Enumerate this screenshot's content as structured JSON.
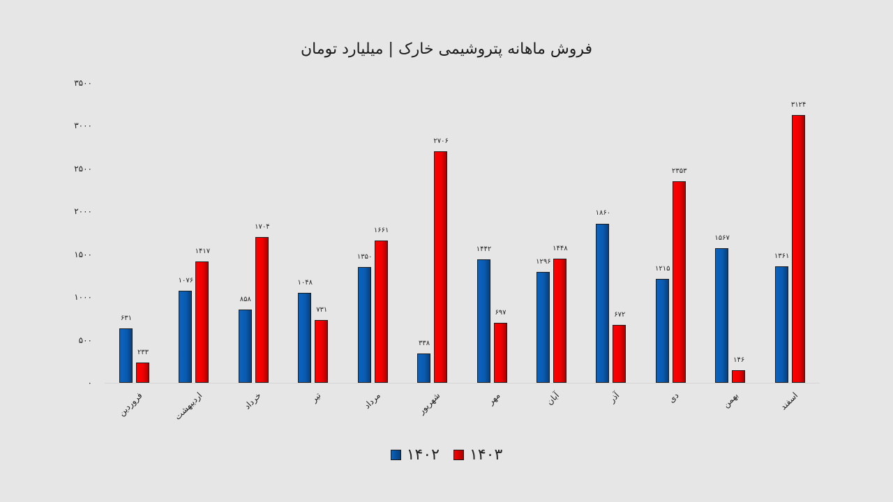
{
  "title": "فروش ماهانه پتروشیمی خارک | میلیارد تومان",
  "colors": {
    "series_1402": "#0a5bb0",
    "series_1403": "#f00000",
    "background": "#e7e6e6"
  },
  "y_ticks": [
    "۳۵۰۰",
    "۳۰۰۰",
    "۲۵۰۰",
    "۲۰۰۰",
    "۱۵۰۰",
    "۱۰۰۰",
    "۵۰۰",
    "۰"
  ],
  "legend": [
    {
      "label": "۱۴۰۲",
      "color": "#0a5bb0"
    },
    {
      "label": "۱۴۰۳",
      "color": "#f00000"
    }
  ],
  "labels": {
    "1402": [
      "۶۳۱",
      "۱۰۷۶",
      "۸۵۸",
      "۱۰۴۸",
      "۱۳۵۰",
      "۳۳۸",
      "۱۴۴۲",
      "۱۲۹۶",
      "۱۸۶۰",
      "۱۲۱۵",
      "۱۵۶۷",
      "۱۳۶۱"
    ],
    "1403": [
      "۲۳۳",
      "۱۴۱۷",
      "۱۷۰۴",
      "۷۳۱",
      "۱۶۶۱",
      "۲۷۰۶",
      "۶۹۷",
      "۱۴۴۸",
      "۶۷۲",
      "۲۳۵۳",
      "۱۴۶",
      "۳۱۲۴"
    ]
  },
  "chart_data": {
    "type": "bar",
    "title": "فروش ماهانه پتروشیمی خارک | میلیارد تومان",
    "xlabel": "",
    "ylabel": "",
    "ylim": [
      0,
      3500
    ],
    "yticks": [
      0,
      500,
      1000,
      1500,
      2000,
      2500,
      3000,
      3500
    ],
    "grid": false,
    "legend_position": "bottom",
    "categories": [
      "فروردین",
      "اردیبهشت",
      "خرداد",
      "تیر",
      "مرداد",
      "شهریور",
      "مهر",
      "آبان",
      "آذر",
      "دی",
      "بهمن",
      "اسفند"
    ],
    "series": [
      {
        "name": "۱۴۰۲",
        "values": [
          631,
          1076,
          858,
          1048,
          1350,
          338,
          1442,
          1296,
          1860,
          1215,
          1567,
          1361
        ]
      },
      {
        "name": "۱۴۰۳",
        "values": [
          233,
          1417,
          1704,
          731,
          1661,
          2706,
          697,
          1448,
          672,
          2353,
          146,
          3124
        ]
      }
    ]
  }
}
